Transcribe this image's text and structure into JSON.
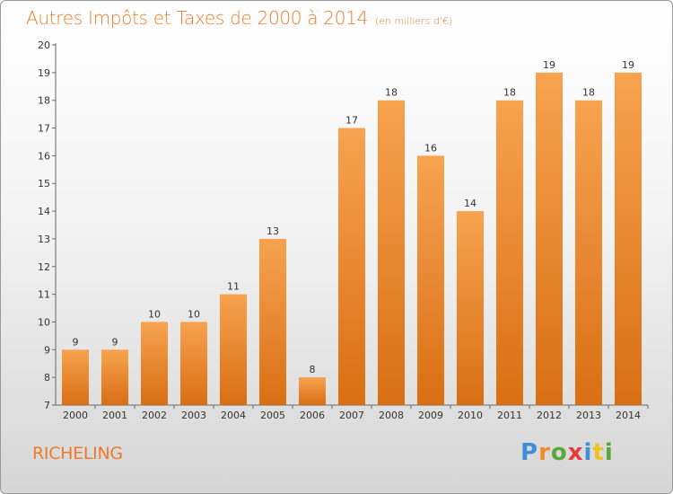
{
  "title": "Autres Impôts et Taxes de 2000 à 2014",
  "unit_note": "(en milliers d'€)",
  "location": "RICHELING",
  "brand": {
    "name": "Proxiti",
    "letter_colors": [
      "#3d8fd6",
      "#f08a2a",
      "#5aa83a",
      "#e43b3b",
      "#3d8fd6",
      "#f0c020",
      "#5aa83a"
    ]
  },
  "colors": {
    "accent": "#ef7b2a",
    "bar_top": "#f7a34f",
    "bar_bottom": "#d96f14"
  },
  "chart_data": {
    "type": "bar",
    "title": "Autres Impôts et Taxes de 2000 à 2014",
    "subtitle": "(en milliers d'€)",
    "xlabel": "",
    "ylabel": "",
    "categories": [
      "2000",
      "2001",
      "2002",
      "2003",
      "2004",
      "2005",
      "2006",
      "2007",
      "2008",
      "2009",
      "2010",
      "2011",
      "2012",
      "2013",
      "2014"
    ],
    "values": [
      9,
      9,
      10,
      10,
      11,
      13,
      8,
      17,
      18,
      16,
      14,
      18,
      19,
      18,
      19
    ],
    "ylim": [
      7,
      20
    ],
    "yticks": [
      7,
      8,
      9,
      10,
      11,
      12,
      13,
      14,
      15,
      16,
      17,
      18,
      19,
      20
    ],
    "grid": false,
    "legend": "none",
    "data_labels": true
  }
}
